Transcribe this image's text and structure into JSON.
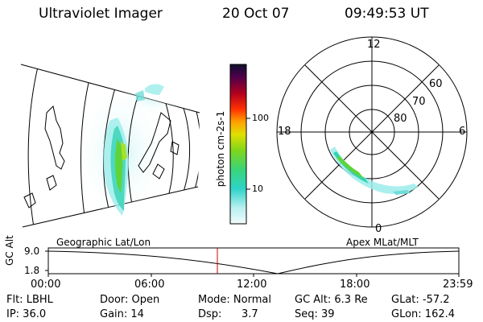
{
  "header": {
    "title": "Ultraviolet Imager",
    "date": "20 Oct 07",
    "time": "09:49:53 UT"
  },
  "colorbar": {
    "label": "photon cm-2s-1",
    "ticks": [
      "100",
      "10"
    ]
  },
  "polar_plot": {
    "mlt_labels": {
      "top": "12",
      "left": "18",
      "right": "6",
      "bottom": "0"
    },
    "lat_labels": [
      "60",
      "70",
      "80"
    ]
  },
  "panel_labels": {
    "left": "Geographic Lat/Lon",
    "right": "Apex MLat/MLT"
  },
  "altitude_plot": {
    "ylabel": "GC Alt",
    "yticks": [
      "9.0",
      "1.8"
    ],
    "xticks": [
      "00:00",
      "06:00",
      "12:00",
      "18:00",
      "23:59"
    ],
    "current_marker_time": "09:49:53"
  },
  "info": {
    "flt": "Flt: LBHL",
    "door": "Door: Open",
    "mode": "Mode: Normal",
    "gc_alt": "GC Alt: 6.3 Re",
    "glat": "GLat: -57.2",
    "ip": "IP: 36.0",
    "gain": "Gain: 14",
    "dsp_label": "Dsp:",
    "dsp_value": "3.7",
    "seq": "Seq: 39",
    "glon": "GLon: 162.4"
  },
  "colors": {
    "marker": "#cc0000",
    "aurora_low": "#8fe8e6",
    "aurora_mid": "#2fd3b0",
    "aurora_high": "#5fd43a"
  }
}
